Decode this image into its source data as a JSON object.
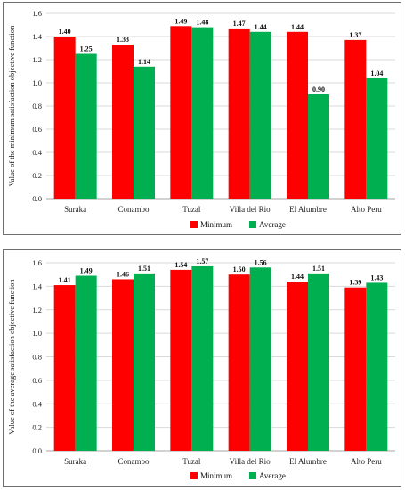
{
  "colors": {
    "minimum": "#ff0000",
    "average": "#00b050"
  },
  "chart_data": [
    {
      "type": "bar",
      "categories": [
        "Suraka",
        "Conambo",
        "Tuzal",
        "Villa del Rio",
        "El Alumbre",
        "Alto Peru"
      ],
      "series": [
        {
          "name": "Minimum",
          "values": [
            1.4,
            1.33,
            1.49,
            1.47,
            1.44,
            1.37
          ],
          "labels": [
            "1.40",
            "1.33",
            "1.49",
            "1.47",
            "1.44",
            "1.37"
          ]
        },
        {
          "name": "Average",
          "values": [
            1.25,
            1.14,
            1.48,
            1.44,
            0.9,
            1.04
          ],
          "labels": [
            "1.25",
            "1.14",
            "1.48",
            "1.44",
            "0.90",
            "1.04"
          ]
        }
      ],
      "ylabel": "Value of the minimum satisfaction objective function",
      "ylim": [
        0,
        1.6
      ],
      "yticks": [
        "0.0",
        "0.2",
        "0.4",
        "0.6",
        "0.8",
        "1.0",
        "1.2",
        "1.4",
        "1.6"
      ],
      "grid": true,
      "legend": "bottom"
    },
    {
      "type": "bar",
      "categories": [
        "Suraka",
        "Conambo",
        "Tuzal",
        "Villa del Rio",
        "El Alumbre",
        "Alto Peru"
      ],
      "series": [
        {
          "name": "Minimum",
          "values": [
            1.41,
            1.46,
            1.54,
            1.5,
            1.44,
            1.39
          ],
          "labels": [
            "1.41",
            "1.46",
            "1.54",
            "1.50",
            "1.44",
            "1.39"
          ]
        },
        {
          "name": "Average",
          "values": [
            1.49,
            1.51,
            1.57,
            1.56,
            1.51,
            1.43
          ],
          "labels": [
            "1.49",
            "1.51",
            "1.57",
            "1.56",
            "1.51",
            "1.43"
          ]
        }
      ],
      "ylabel": "Value of the average satisfaction objective function",
      "ylim": [
        0,
        1.6
      ],
      "yticks": [
        "0.0",
        "0.2",
        "0.4",
        "0.6",
        "0.8",
        "1.0",
        "1.2",
        "1.4",
        "1.6"
      ],
      "grid": true,
      "legend": "bottom"
    }
  ]
}
